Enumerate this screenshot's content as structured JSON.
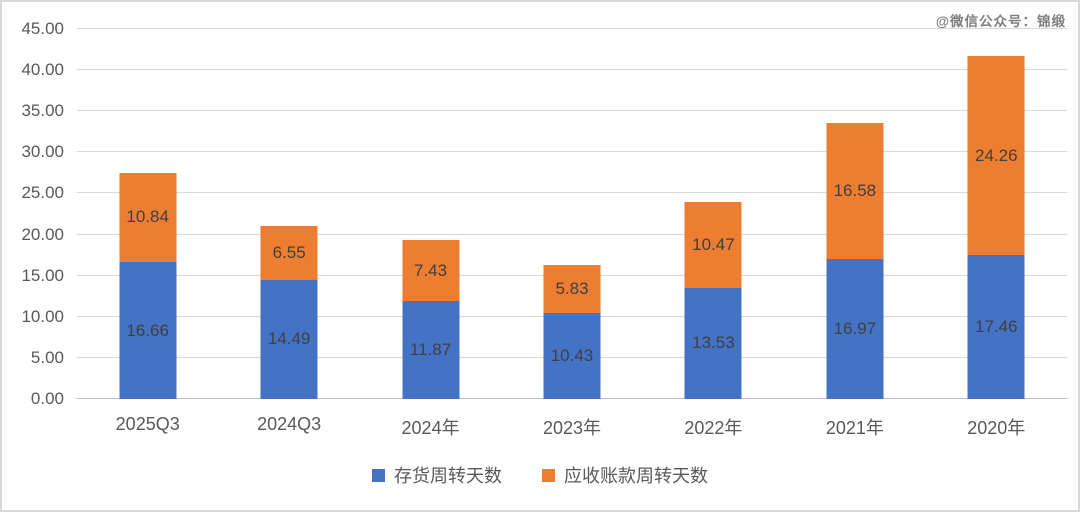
{
  "watermark": "@微信公众号：锦缎",
  "colors": {
    "series_blue": "#4472C4",
    "series_orange": "#ED7D31",
    "gridline": "#D9D9D9",
    "zero_line": "#BFBFBF",
    "axis_text": "#595959",
    "data_label_text": "#404040",
    "watermark_text": "#7F7F7F",
    "border": "#D9D9D9"
  },
  "chart_data": {
    "type": "bar",
    "stacked": true,
    "title": "",
    "xlabel": "",
    "ylabel": "",
    "grid": true,
    "legend_position": "bottom",
    "ylim": [
      0,
      45
    ],
    "ytick_step": 5,
    "ytick_labels": [
      "0.00",
      "5.00",
      "10.00",
      "15.00",
      "20.00",
      "25.00",
      "30.00",
      "35.00",
      "40.00",
      "45.00"
    ],
    "categories": [
      "2025Q3",
      "2024Q3",
      "2024年",
      "2023年",
      "2022年",
      "2021年",
      "2020年"
    ],
    "series": [
      {
        "name": "存货周转天数",
        "color": "#4472C4",
        "values": [
          16.66,
          14.49,
          11.87,
          10.43,
          13.53,
          16.97,
          17.46
        ]
      },
      {
        "name": "应收账款周转天数",
        "color": "#ED7D31",
        "values": [
          10.84,
          6.55,
          7.43,
          5.83,
          10.47,
          16.58,
          24.26
        ]
      }
    ]
  }
}
